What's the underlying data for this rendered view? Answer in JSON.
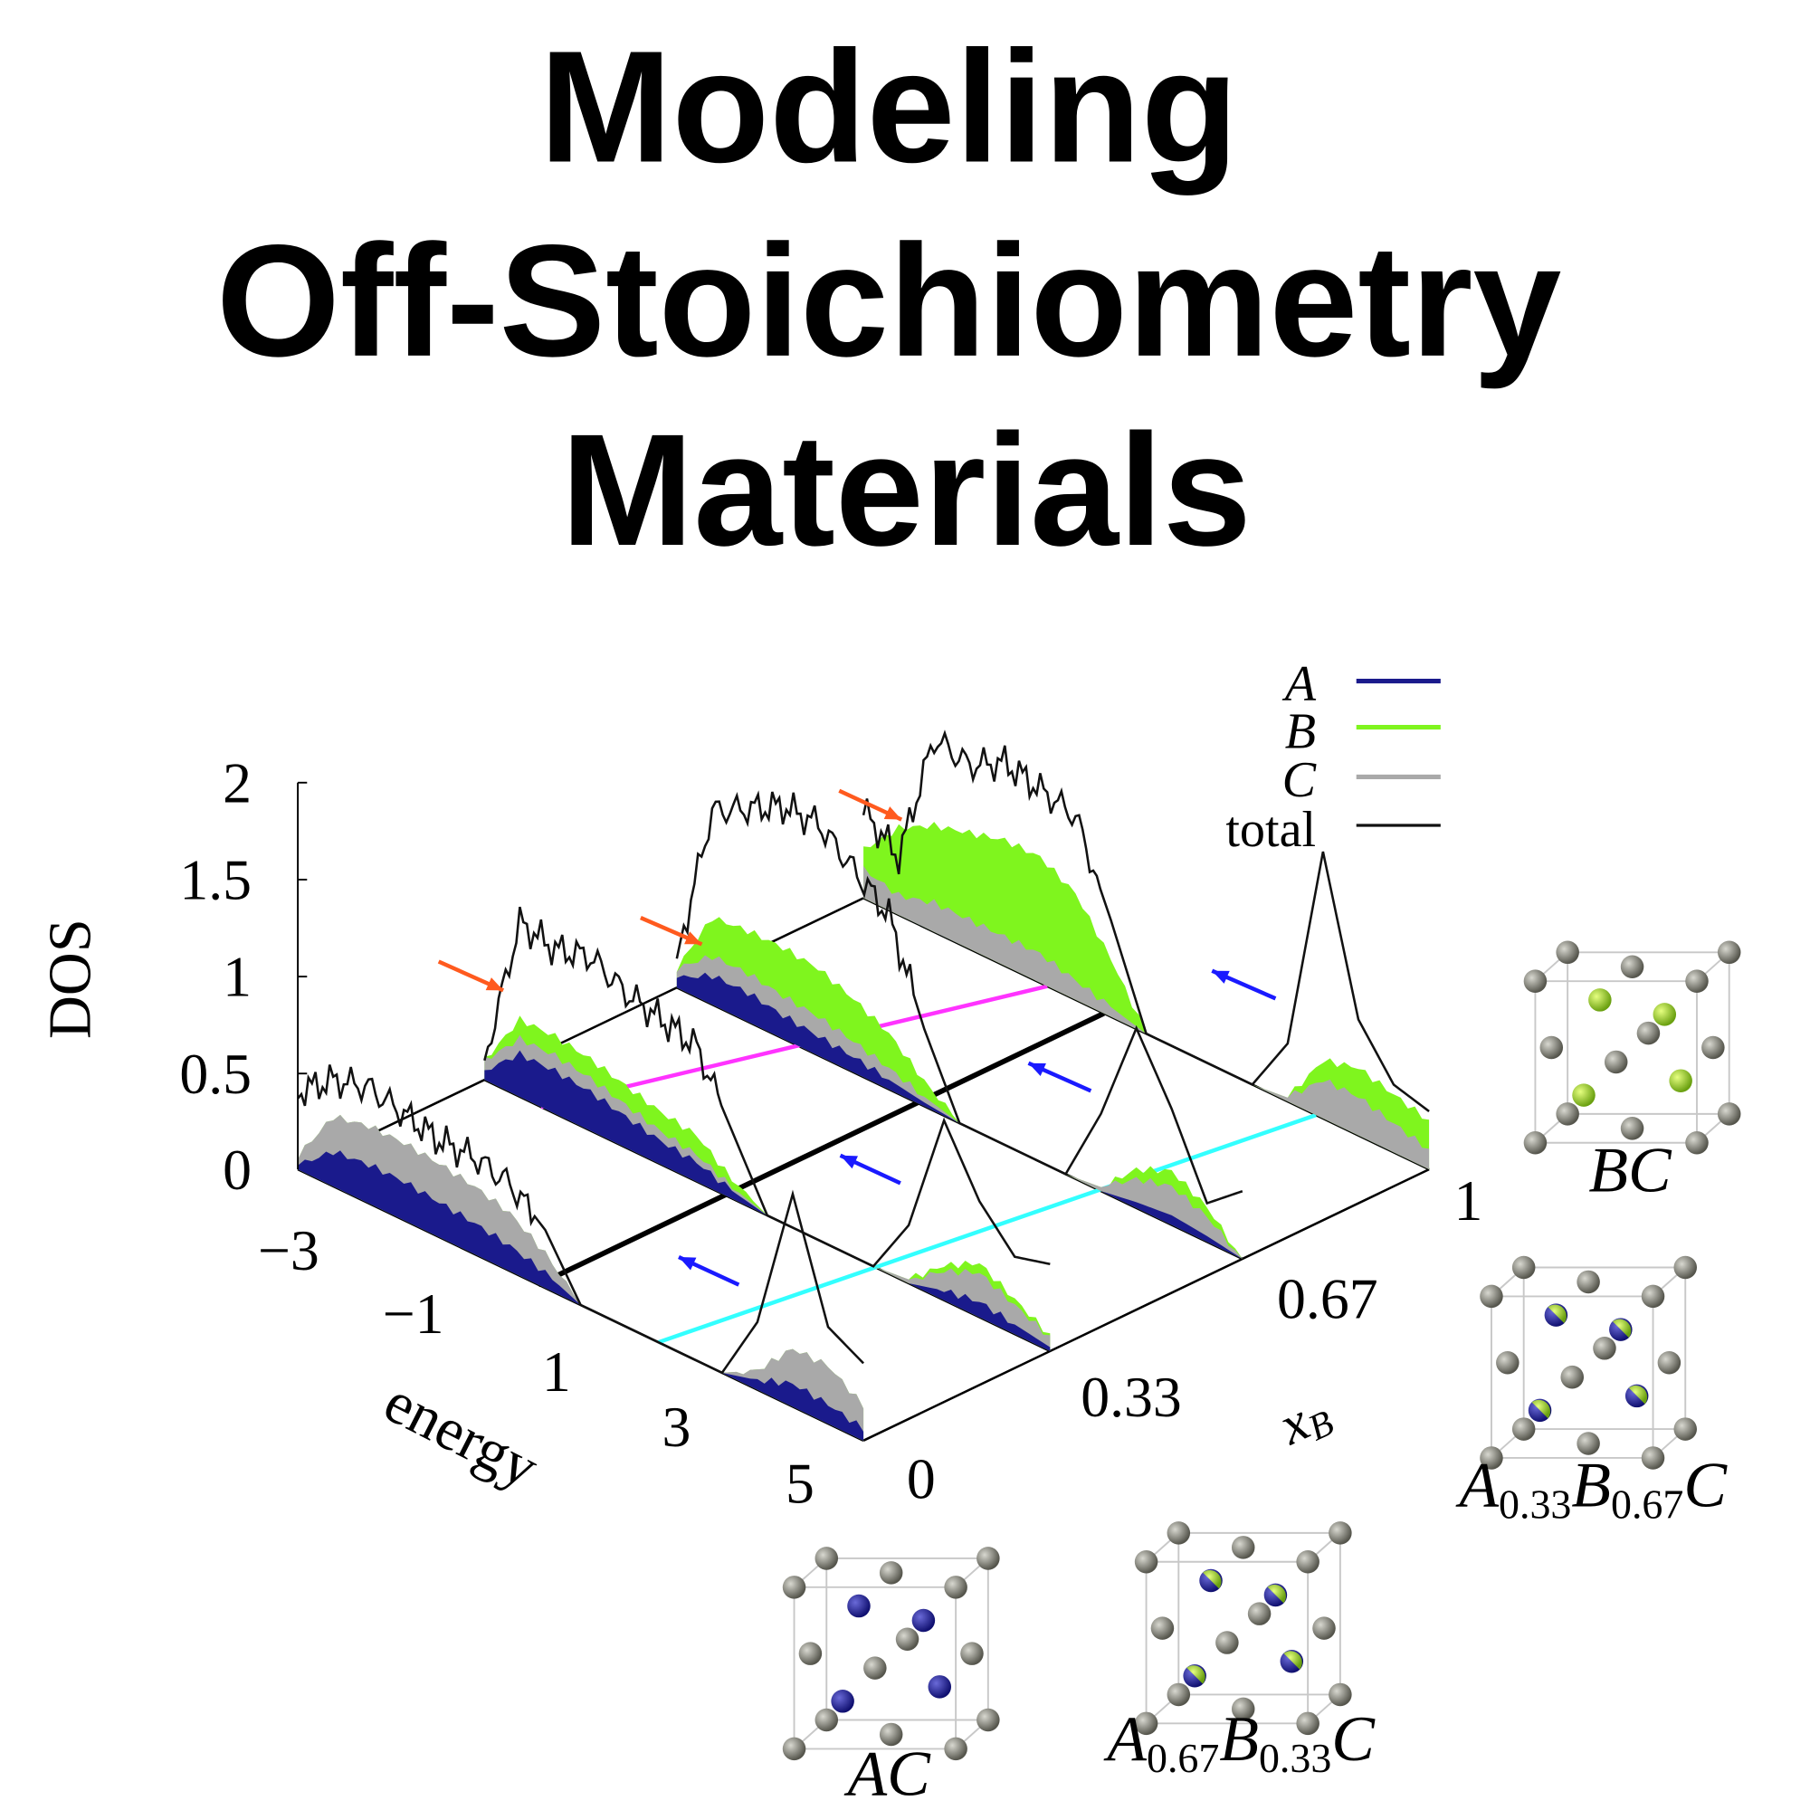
{
  "title": {
    "line1": "Modeling",
    "line2": "Off-Stoichiometry",
    "line3": "Materials"
  },
  "colors": {
    "A": "#1a1a8c",
    "B": "#7ff51e",
    "C": "#a9a9a9",
    "total": "#111111",
    "magenta": "#ff33ff",
    "cyan": "#33ffff",
    "valence_arrow": "#ff5a1e",
    "conduction_arrow": "#1a1aff",
    "host_atom": "#8a8a80"
  },
  "chart_data": {
    "type": "area",
    "projection": "3d-waterfall",
    "xlabel": "energy",
    "ylabel": "x_B",
    "zlabel": "DOS",
    "energy_ticks": [
      "−3",
      "−1",
      "1",
      "3",
      "5"
    ],
    "xB_ticks": [
      "0",
      "0.33",
      "0.67",
      "1"
    ],
    "dos_ticks": [
      "0",
      "0.5",
      "1",
      "1.5",
      "2"
    ],
    "energy_range": [
      -3,
      5
    ],
    "dos_range": [
      0,
      2
    ],
    "energy": [
      -3,
      -2.5,
      -2,
      -1.5,
      -1,
      -0.5,
      0,
      0.5,
      1,
      1.5,
      2,
      2.5,
      3,
      3.5,
      4,
      4.5,
      5
    ],
    "legend": [
      {
        "label": "A",
        "color": "#1a1a8c"
      },
      {
        "label": "B",
        "color": "#7ff51e"
      },
      {
        "label": "C",
        "color": "#a9a9a9"
      },
      {
        "label": "total",
        "color": "#111111"
      }
    ],
    "legend_position": "top-right",
    "slices": [
      {
        "xB": 1,
        "total": [
          0.45,
          0.3,
          1.0,
          0.95,
          1.05,
          1.0,
          0.95,
          0.5,
          0,
          0,
          0,
          0,
          0.3,
          1.38,
          0.6,
          0.35,
          0.3
        ],
        "A": [
          0,
          0,
          0,
          0,
          0,
          0,
          0,
          0,
          0,
          0,
          0,
          0,
          0,
          0,
          0,
          0,
          0
        ],
        "B": [
          0.1,
          0.35,
          0.4,
          0.45,
          0.5,
          0.5,
          0.45,
          0.25,
          0,
          0,
          0,
          0,
          0,
          0.1,
          0.15,
          0.15,
          0.15
        ],
        "C": [
          0.15,
          0.1,
          0.15,
          0.15,
          0.15,
          0.15,
          0.1,
          0.05,
          0,
          0,
          0,
          0,
          0.02,
          0.2,
          0.2,
          0.15,
          0.1
        ]
      },
      {
        "xB": 0.67,
        "total": [
          0.15,
          1.0,
          1.1,
          1.2,
          1.2,
          1.05,
          0.9,
          0.4,
          0,
          0,
          0,
          0,
          0.4,
          0.93,
          0.6,
          0.2,
          0.35
        ],
        "A": [
          0.05,
          0.15,
          0.15,
          0.12,
          0.1,
          0.08,
          0.05,
          0.02,
          0,
          0,
          0,
          0,
          0,
          0.03,
          0.05,
          0.03,
          0
        ],
        "B": [
          0,
          0.2,
          0.22,
          0.25,
          0.25,
          0.22,
          0.18,
          0.08,
          0,
          0,
          0,
          0,
          0,
          0.05,
          0.08,
          0.05,
          0
        ],
        "C": [
          0.05,
          0.1,
          0.1,
          0.1,
          0.1,
          0.08,
          0.06,
          0.03,
          0,
          0,
          0,
          0,
          0.02,
          0.12,
          0.15,
          0.1,
          0
        ]
      },
      {
        "xB": 0.33,
        "total": [
          0.1,
          0.9,
          0.85,
          0.9,
          0.8,
          0.75,
          0.7,
          0.35,
          0,
          0,
          0,
          0,
          0.3,
          0.93,
          0.6,
          0.4,
          0.45
        ],
        "A": [
          0.05,
          0.22,
          0.22,
          0.2,
          0.16,
          0.12,
          0.1,
          0.04,
          0,
          0,
          0,
          0,
          0,
          0.05,
          0.08,
          0.05,
          0.02
        ],
        "B": [
          0,
          0.1,
          0.1,
          0.1,
          0.1,
          0.1,
          0.1,
          0.04,
          0,
          0,
          0,
          0,
          0,
          0.03,
          0.05,
          0.03,
          0.01
        ],
        "C": [
          0.05,
          0.08,
          0.08,
          0.07,
          0.06,
          0.05,
          0.04,
          0.02,
          0,
          0,
          0,
          0,
          0.02,
          0.1,
          0.15,
          0.1,
          0.05
        ]
      },
      {
        "xB": 0,
        "total": [
          0.4,
          0.55,
          0.6,
          0.55,
          0.5,
          0.5,
          0.45,
          0.3,
          0,
          0,
          0,
          0,
          0,
          0.35,
          1.1,
          0.5,
          0.4
        ],
        "A": [
          0.02,
          0.18,
          0.2,
          0.2,
          0.18,
          0.16,
          0.13,
          0.08,
          0,
          0,
          0,
          0,
          0,
          0.05,
          0.12,
          0.1,
          0.06
        ],
        "B": [
          0,
          0,
          0,
          0,
          0,
          0,
          0,
          0,
          0,
          0,
          0,
          0,
          0,
          0,
          0,
          0,
          0
        ],
        "C": [
          0.05,
          0.18,
          0.2,
          0.2,
          0.2,
          0.19,
          0.17,
          0.1,
          0,
          0,
          0,
          0,
          0,
          0.05,
          0.18,
          0.2,
          0.12
        ]
      }
    ]
  },
  "structures": [
    {
      "name": "BC",
      "parts": [
        {
          "t": "B",
          "s": ""
        },
        {
          "t": "C",
          "s": ""
        }
      ],
      "inner": [
        "B",
        "B",
        "B",
        "B"
      ]
    },
    {
      "name": "A0.33B0.67C",
      "parts": [
        {
          "t": "A",
          "s": "0.33"
        },
        {
          "t": "B",
          "s": "0.67"
        },
        {
          "t": "C",
          "s": ""
        }
      ],
      "inner": [
        "AB",
        "AB",
        "AB",
        "AB"
      ]
    },
    {
      "name": "A0.67B0.33C",
      "parts": [
        {
          "t": "A",
          "s": "0.67"
        },
        {
          "t": "B",
          "s": "0.33"
        },
        {
          "t": "C",
          "s": ""
        }
      ],
      "inner": [
        "AB",
        "AB",
        "AB",
        "AB"
      ]
    },
    {
      "name": "AC",
      "parts": [
        {
          "t": "A",
          "s": ""
        },
        {
          "t": "C",
          "s": ""
        }
      ],
      "inner": [
        "A",
        "A",
        "A",
        "A"
      ]
    }
  ]
}
